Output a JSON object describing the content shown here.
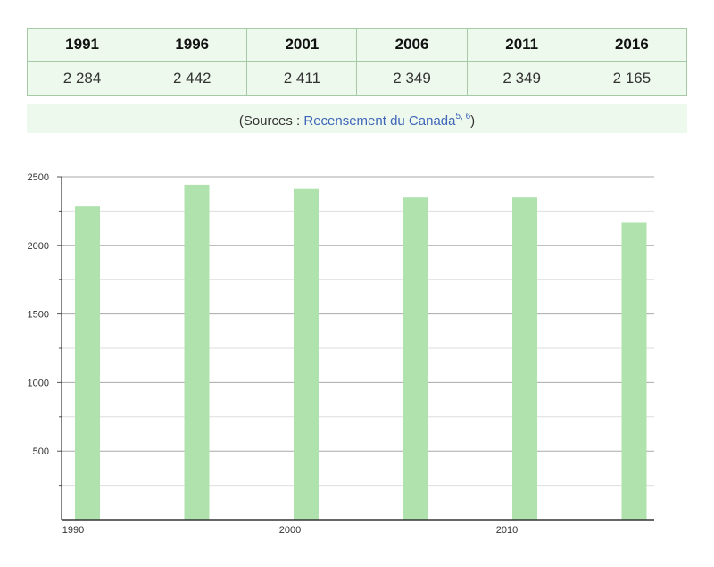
{
  "table": {
    "headers": [
      "1991",
      "1996",
      "2001",
      "2006",
      "2011",
      "2016"
    ],
    "values": [
      "2 284",
      "2 442",
      "2 411",
      "2 349",
      "2 349",
      "2 165"
    ]
  },
  "sources": {
    "prefix": "(Sources : ",
    "link_text": "Recensement du Canada",
    "refs": "5, 6",
    "suffix": ")"
  },
  "colors": {
    "bar": "#b0e2ae",
    "table_bg": "#eef9ee",
    "table_border": "#a6c9a6",
    "link": "#3e65b8"
  },
  "chart_data": {
    "type": "bar",
    "x": [
      1991,
      1996,
      2001,
      2006,
      2011,
      2016
    ],
    "values": [
      2284,
      2442,
      2411,
      2349,
      2349,
      2165
    ],
    "title": "",
    "xlabel": "",
    "ylabel": "",
    "xlim": [
      1990,
      2016
    ],
    "ylim": [
      0,
      2500
    ],
    "y_ticks": [
      500,
      1000,
      1500,
      2000,
      2500
    ],
    "x_ticks": [
      1990,
      2000,
      2010
    ],
    "grid": true,
    "legend": "none"
  }
}
